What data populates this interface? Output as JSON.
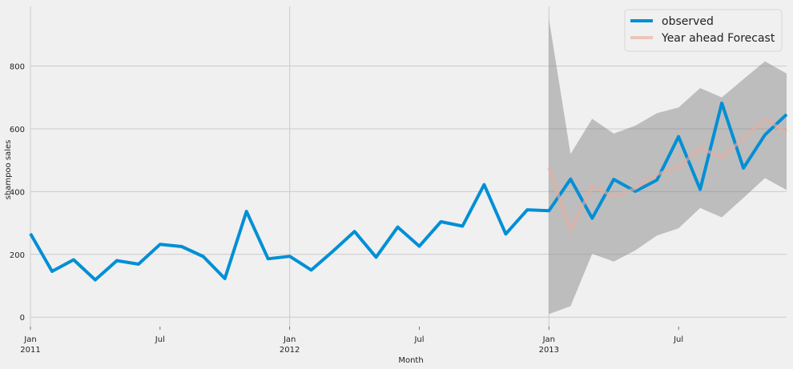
{
  "chart_data": {
    "type": "line",
    "xlabel": "Month",
    "ylabel": "shampoo sales",
    "ylim": [
      -30,
      990
    ],
    "grid": true,
    "legend_position": "top-right",
    "x_ticks": [
      {
        "month": 0,
        "line1": "Jan",
        "line2": "2011"
      },
      {
        "month": 6,
        "line1": "Jul",
        "line2": ""
      },
      {
        "month": 12,
        "line1": "Jan",
        "line2": "2012"
      },
      {
        "month": 18,
        "line1": "Jul",
        "line2": ""
      },
      {
        "month": 24,
        "line1": "Jan",
        "line2": "2013"
      },
      {
        "month": 30,
        "line1": "Jul",
        "line2": ""
      }
    ],
    "y_ticks": [
      0,
      200,
      400,
      600,
      800
    ],
    "x_range": [
      0,
      35
    ],
    "series": [
      {
        "name": "observed",
        "color": "#008fd5",
        "x": [
          0,
          1,
          2,
          3,
          4,
          5,
          6,
          7,
          8,
          9,
          10,
          11,
          12,
          13,
          14,
          15,
          16,
          17,
          18,
          19,
          20,
          21,
          22,
          23,
          24,
          25,
          26,
          27,
          28,
          29,
          30,
          31,
          32,
          33,
          34,
          35
        ],
        "values": [
          266,
          146,
          183,
          119,
          180,
          169,
          232,
          225,
          193,
          123,
          337,
          186,
          194,
          150,
          210,
          273,
          191,
          287,
          226,
          304,
          290,
          422,
          265,
          342,
          339,
          440,
          315,
          439,
          401,
          437,
          575,
          407,
          682,
          475,
          581,
          646
        ]
      },
      {
        "name": "Year ahead Forecast",
        "color": "#e5ae9f",
        "x": [
          24,
          25,
          26,
          27,
          28,
          29,
          30,
          31,
          32,
          33,
          34,
          35
        ],
        "values": [
          477,
          276,
          418,
          384,
          410,
          455,
          477,
          540,
          508,
          570,
          630,
          590
        ]
      }
    ],
    "confidence_interval": {
      "color": "#7f7f7f",
      "x": [
        24,
        25,
        26,
        27,
        28,
        29,
        30,
        31,
        32,
        33,
        34,
        35
      ],
      "lower": [
        10,
        35,
        202,
        177,
        213,
        260,
        283,
        348,
        318,
        380,
        443,
        405
      ],
      "upper": [
        950,
        520,
        632,
        585,
        610,
        650,
        668,
        730,
        700,
        758,
        815,
        776
      ]
    }
  }
}
